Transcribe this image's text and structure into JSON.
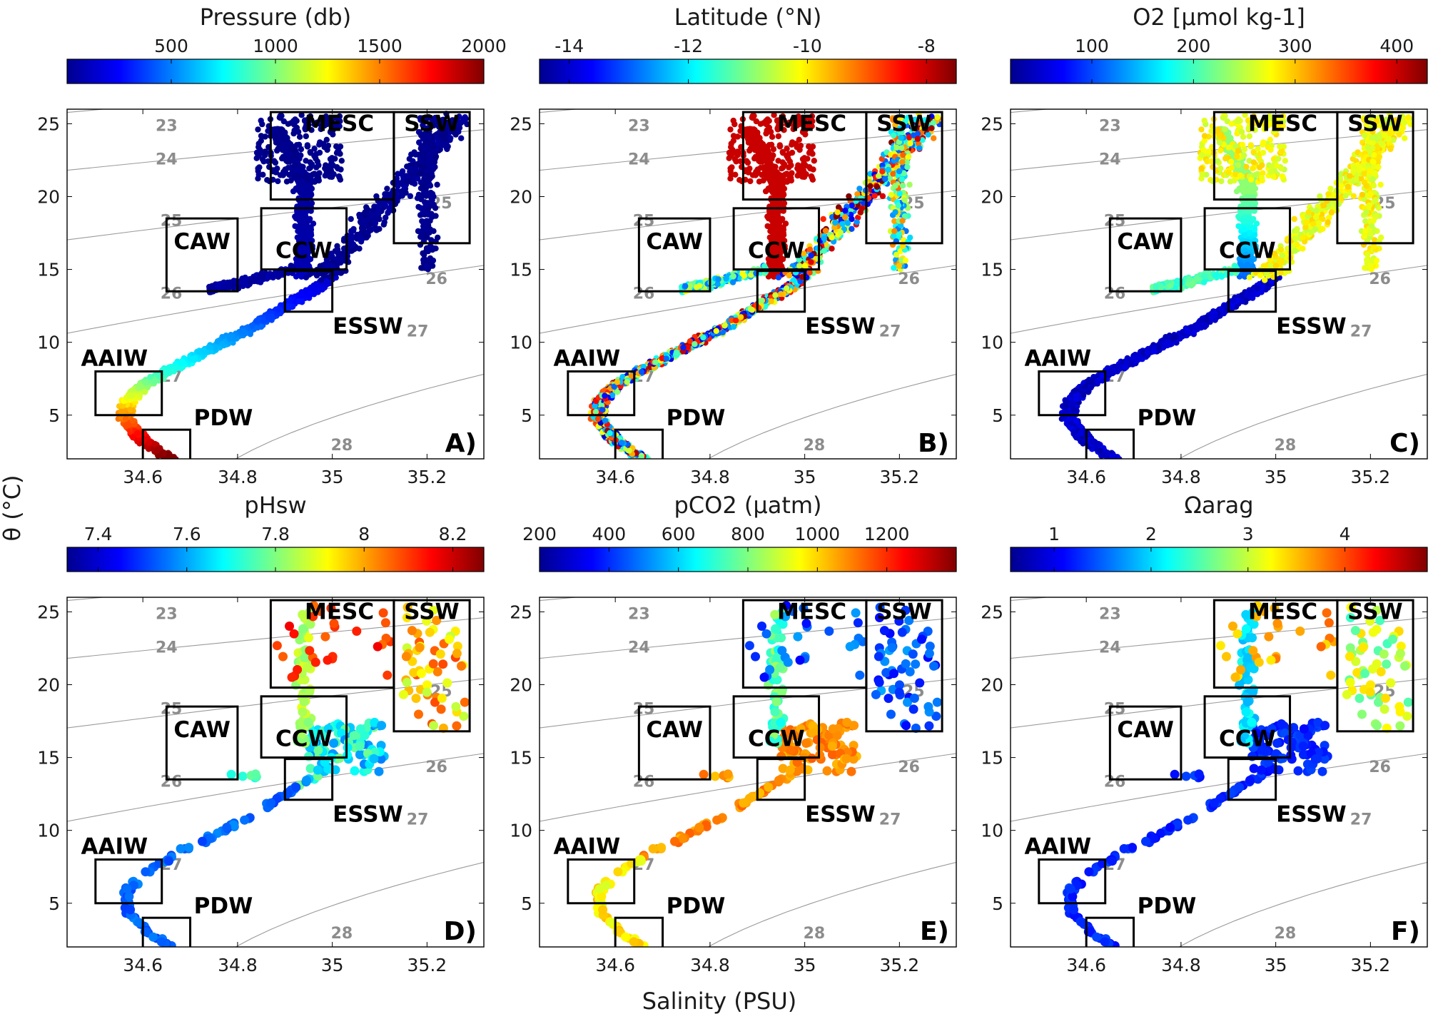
{
  "chart_data": {
    "type": "scatter",
    "xlabel": "Salinity (PSU)",
    "ylabel": "θ (°C)",
    "xlim": [
      34.44,
      35.32
    ],
    "ylim": [
      2,
      26
    ],
    "x_ticks": [
      "34.6",
      "34.8",
      "35",
      "35.2"
    ],
    "y_ticks": [
      "5",
      "10",
      "15",
      "20",
      "25"
    ],
    "grid": false,
    "colormap": "jet",
    "density_contours": [
      23,
      24,
      25,
      26,
      27,
      28
    ],
    "water_masses": [
      {
        "name": "MESC",
        "s": [
          34.87,
          35.13
        ],
        "t": [
          19.8,
          25.8
        ]
      },
      {
        "name": "SSW",
        "s": [
          35.13,
          35.29
        ],
        "t": [
          16.8,
          25.8
        ]
      },
      {
        "name": "CAW",
        "s": [
          34.65,
          34.8
        ],
        "t": [
          13.5,
          18.5
        ]
      },
      {
        "name": "CCW",
        "s": [
          34.85,
          35.03
        ],
        "t": [
          15.0,
          19.2
        ]
      },
      {
        "name": "ESSW",
        "s": [
          34.9,
          35.0
        ],
        "t": [
          12.1,
          14.9
        ]
      },
      {
        "name": "AAIW",
        "s": [
          34.5,
          34.64
        ],
        "t": [
          5.0,
          8.0
        ]
      },
      {
        "name": "PDW",
        "s": [
          34.6,
          34.7
        ],
        "t": [
          1.5,
          4.0
        ]
      }
    ],
    "panels": [
      {
        "label": "A)",
        "colorbar_label": "Pressure (db)",
        "colorbar_ticks": [
          "500",
          "1000",
          "1500",
          "2000"
        ],
        "colorbar_values": [
          500,
          1000,
          1500,
          2000
        ],
        "clim": [
          0,
          2000
        ],
        "profile": "dense-pressure"
      },
      {
        "label": "B)",
        "colorbar_label": "Latitude (°N)",
        "colorbar_ticks": [
          "-14",
          "-12",
          "-10",
          "-8"
        ],
        "colorbar_values": [
          -14,
          -12,
          -10,
          -8
        ],
        "clim": [
          -14.5,
          -7.5
        ],
        "profile": "dense-latitude"
      },
      {
        "label": "C)",
        "colorbar_label": "O2 [μmol kg-1]",
        "colorbar_ticks": [
          "100",
          "200",
          "300",
          "400"
        ],
        "colorbar_values": [
          100,
          200,
          300,
          400
        ],
        "clim": [
          20,
          430
        ],
        "profile": "dense-oxygen"
      },
      {
        "label": "D)",
        "colorbar_label": "pHsw",
        "colorbar_ticks": [
          "7.4",
          "7.6",
          "7.8",
          "8",
          "8.2"
        ],
        "colorbar_values": [
          7.4,
          7.6,
          7.8,
          8.0,
          8.2
        ],
        "clim": [
          7.33,
          8.27
        ],
        "profile": "sparse-ph"
      },
      {
        "label": "E)",
        "colorbar_label": "pCO2 (μatm)",
        "colorbar_ticks": [
          "200",
          "400",
          "600",
          "800",
          "1000",
          "1200"
        ],
        "colorbar_values": [
          200,
          400,
          600,
          800,
          1000,
          1200
        ],
        "clim": [
          200,
          1400
        ],
        "profile": "sparse-pco2"
      },
      {
        "label": "F)",
        "colorbar_label": "Ωarag",
        "colorbar_ticks": [
          "1",
          "2",
          "3",
          "4"
        ],
        "colorbar_values": [
          1,
          2,
          3,
          4
        ],
        "clim": [
          0.55,
          4.85
        ],
        "profile": "sparse-omega"
      }
    ]
  }
}
